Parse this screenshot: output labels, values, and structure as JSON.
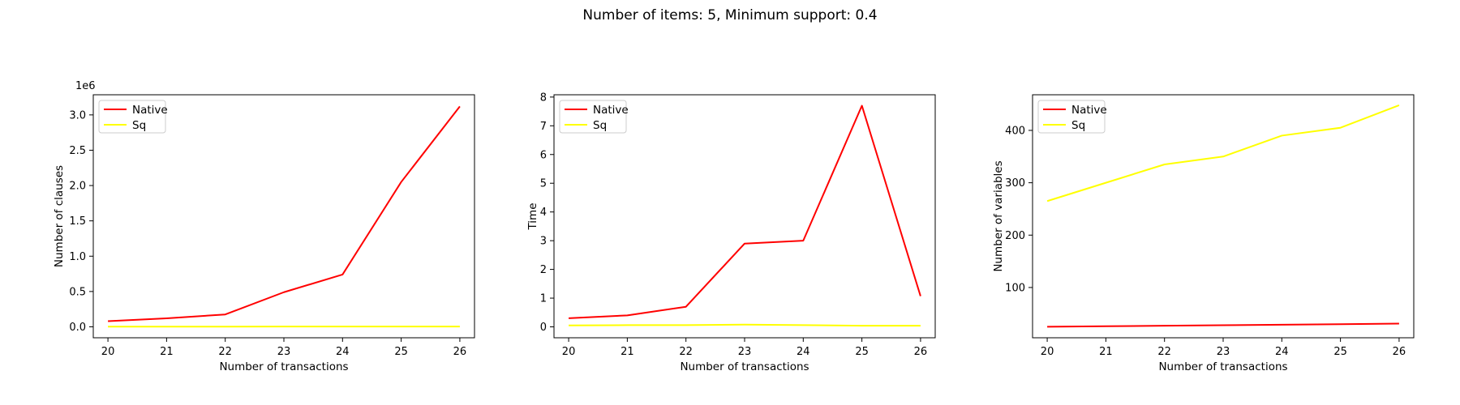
{
  "suptitle": "Number of items: 5, Minimum support: 0.4",
  "colors": {
    "native": "#ff0000",
    "sq": "#ffff00"
  },
  "chart_data": [
    {
      "type": "line",
      "xlabel": "Number of transactions",
      "ylabel": "Number of clauses",
      "offset_text": "1e6",
      "xlim": [
        19.75,
        26.25
      ],
      "ylim": [
        -155000,
        3285000
      ],
      "xticks": [
        20,
        21,
        22,
        23,
        24,
        25,
        26
      ],
      "yticks": [
        0,
        500000,
        1000000,
        1500000,
        2000000,
        2500000,
        3000000
      ],
      "ytick_labels": [
        "0.0",
        "0.5",
        "1.0",
        "1.5",
        "2.0",
        "2.5",
        "3.0"
      ],
      "legend_position": "top-left",
      "x": [
        20,
        21,
        22,
        23,
        24,
        25,
        26
      ],
      "series": [
        {
          "name": "Native",
          "color": "#ff0000",
          "values": [
            80000,
            120000,
            175000,
            490000,
            740000,
            2050000,
            3120000
          ]
        },
        {
          "name": "Sq",
          "color": "#ffff00",
          "values": [
            3000,
            3200,
            3400,
            3600,
            3800,
            4000,
            4200
          ]
        }
      ]
    },
    {
      "type": "line",
      "xlabel": "Number of transactions",
      "ylabel": "Time",
      "offset_text": "",
      "xlim": [
        19.75,
        26.25
      ],
      "ylim": [
        -0.38,
        8.08
      ],
      "xticks": [
        20,
        21,
        22,
        23,
        24,
        25,
        26
      ],
      "yticks": [
        0,
        1,
        2,
        3,
        4,
        5,
        6,
        7,
        8
      ],
      "ytick_labels": [
        "0",
        "1",
        "2",
        "3",
        "4",
        "5",
        "6",
        "7",
        "8"
      ],
      "legend_position": "top-left",
      "x": [
        20,
        21,
        22,
        23,
        24,
        25,
        26
      ],
      "series": [
        {
          "name": "Native",
          "color": "#ff0000",
          "values": [
            0.3,
            0.4,
            0.7,
            2.9,
            3.0,
            7.7,
            1.07
          ]
        },
        {
          "name": "Sq",
          "color": "#ffff00",
          "values": [
            0.05,
            0.06,
            0.06,
            0.08,
            0.06,
            0.04,
            0.04
          ]
        }
      ]
    },
    {
      "type": "line",
      "xlabel": "Number of transactions",
      "ylabel": "Number of variables",
      "offset_text": "",
      "xlim": [
        19.75,
        26.25
      ],
      "ylim": [
        4,
        468
      ],
      "xticks": [
        20,
        21,
        22,
        23,
        24,
        25,
        26
      ],
      "yticks": [
        100,
        200,
        300,
        400
      ],
      "ytick_labels": [
        "100",
        "200",
        "300",
        "400"
      ],
      "legend_position": "top-left",
      "x": [
        20,
        21,
        22,
        23,
        24,
        25,
        26
      ],
      "series": [
        {
          "name": "Native",
          "color": "#ff0000",
          "values": [
            25,
            26,
            27,
            28,
            29,
            30,
            31
          ]
        },
        {
          "name": "Sq",
          "color": "#ffff00",
          "values": [
            265,
            300,
            335,
            350,
            390,
            405,
            448
          ]
        }
      ]
    }
  ]
}
